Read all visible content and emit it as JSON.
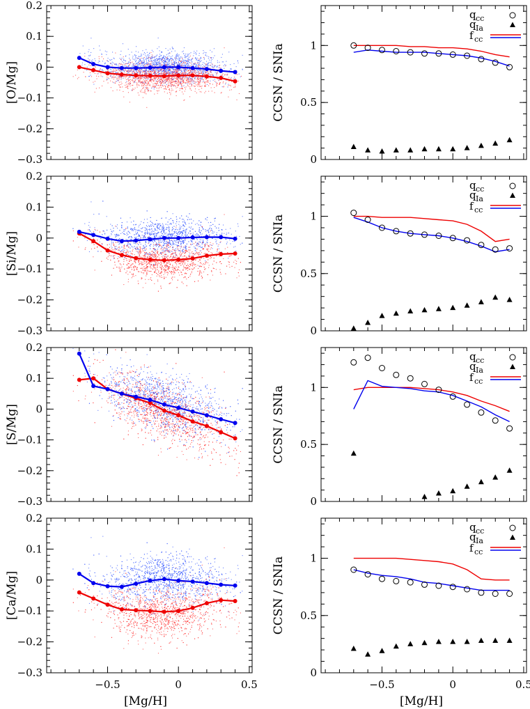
{
  "figure": {
    "x_label": "[Mg/H]",
    "y_label_right": "CCSN / SNIa"
  },
  "left_x_ticks": [
    "−0.5",
    "0",
    "0.5"
  ],
  "left_y_ticks": [
    "0.2",
    "0.1",
    "0",
    "−0.1",
    "−0.2",
    "−0.3"
  ],
  "right_x_ticks": [
    "−0.5",
    "0",
    "0.5"
  ],
  "right_y_ticks": [
    "1",
    "0.5",
    "0"
  ],
  "legend": {
    "q_cc": "q",
    "q_cc_sub": "cc",
    "q_Ia": "q",
    "q_Ia_sub": "Ia",
    "f_cc": "f",
    "f_cc_sub": "cc"
  },
  "colors": {
    "high": "#0000ee",
    "low": "#ee0000",
    "scatter_high": "#3355ff",
    "scatter_low": "#ff3333"
  },
  "chart_data": [
    {
      "type": "scatter",
      "element": "O",
      "ylabel": "[O/Mg]",
      "xlim": [
        -0.93,
        0.52
      ],
      "ylim": [
        -0.3,
        0.2
      ],
      "series": [
        {
          "color": "blue",
          "x": [
            -0.7,
            -0.6,
            -0.5,
            -0.4,
            -0.3,
            -0.2,
            -0.1,
            0.0,
            0.1,
            0.2,
            0.3,
            0.4
          ],
          "y": [
            0.03,
            0.01,
            0.0,
            -0.003,
            -0.003,
            -0.002,
            0.0,
            0.0,
            -0.003,
            -0.006,
            -0.012,
            -0.016
          ]
        },
        {
          "color": "red",
          "x": [
            -0.7,
            -0.6,
            -0.5,
            -0.4,
            -0.3,
            -0.2,
            -0.1,
            0.0,
            0.1,
            0.2,
            0.3,
            0.4
          ],
          "y": [
            0.0,
            -0.01,
            -0.02,
            -0.024,
            -0.027,
            -0.028,
            -0.029,
            -0.027,
            -0.027,
            -0.03,
            -0.035,
            -0.046
          ]
        }
      ],
      "cloud": {
        "center": -0.008,
        "width": 0.035,
        "spread_blue": 0.012,
        "spread_red": 0.012
      }
    },
    {
      "type": "line",
      "element": "O",
      "ylim": [
        0,
        1.35
      ],
      "xlim": [
        -0.93,
        0.52
      ],
      "x": [
        -0.7,
        -0.6,
        -0.5,
        -0.4,
        -0.3,
        -0.2,
        -0.1,
        0.0,
        0.1,
        0.2,
        0.3,
        0.4
      ],
      "q_cc": [
        1.0,
        0.98,
        0.96,
        0.95,
        0.94,
        0.93,
        0.93,
        0.92,
        0.91,
        0.88,
        0.85,
        0.81
      ],
      "q_Ia": [
        0.11,
        0.08,
        0.07,
        0.08,
        0.08,
        0.09,
        0.09,
        0.09,
        0.1,
        0.12,
        0.14,
        0.17
      ],
      "f_cc_red": [
        1.0,
        1.0,
        1.0,
        1.0,
        0.99,
        0.99,
        0.98,
        0.98,
        0.97,
        0.95,
        0.92,
        0.9
      ],
      "f_cc_blue": [
        0.94,
        0.96,
        0.95,
        0.94,
        0.94,
        0.94,
        0.93,
        0.92,
        0.91,
        0.89,
        0.86,
        0.82
      ]
    },
    {
      "type": "scatter",
      "element": "Si",
      "ylabel": "[Si/Mg]",
      "xlim": [
        -0.93,
        0.52
      ],
      "ylim": [
        -0.3,
        0.2
      ],
      "series": [
        {
          "color": "blue",
          "x": [
            -0.7,
            -0.6,
            -0.5,
            -0.4,
            -0.3,
            -0.2,
            -0.1,
            0.0,
            0.1,
            0.2,
            0.3,
            0.4
          ],
          "y": [
            0.02,
            0.01,
            -0.002,
            -0.01,
            -0.008,
            -0.004,
            0.0,
            0.0,
            0.002,
            0.003,
            0.003,
            -0.002
          ]
        },
        {
          "color": "red",
          "x": [
            -0.7,
            -0.6,
            -0.5,
            -0.4,
            -0.3,
            -0.2,
            -0.1,
            0.0,
            0.1,
            0.2,
            0.3,
            0.4
          ],
          "y": [
            0.015,
            -0.01,
            -0.04,
            -0.055,
            -0.065,
            -0.07,
            -0.072,
            -0.07,
            -0.066,
            -0.057,
            -0.052,
            -0.05
          ]
        }
      ],
      "cloud": {
        "center": -0.03,
        "width": 0.045,
        "spread_blue": 0.02,
        "spread_red": 0.02
      }
    },
    {
      "type": "line",
      "element": "Si",
      "ylim": [
        0,
        1.35
      ],
      "xlim": [
        -0.93,
        0.52
      ],
      "x": [
        -0.7,
        -0.6,
        -0.5,
        -0.4,
        -0.3,
        -0.2,
        -0.1,
        0.0,
        0.1,
        0.2,
        0.3,
        0.4
      ],
      "q_cc": [
        1.03,
        0.97,
        0.9,
        0.87,
        0.85,
        0.84,
        0.83,
        0.81,
        0.79,
        0.75,
        0.71,
        0.72
      ],
      "q_Ia": [
        0.02,
        0.07,
        0.13,
        0.15,
        0.17,
        0.18,
        0.19,
        0.2,
        0.22,
        0.25,
        0.29,
        0.27
      ],
      "f_cc_red": [
        1.0,
        1.0,
        0.99,
        0.99,
        0.99,
        0.98,
        0.97,
        0.96,
        0.93,
        0.87,
        0.78,
        0.8
      ],
      "f_cc_blue": [
        0.99,
        0.95,
        0.9,
        0.87,
        0.85,
        0.84,
        0.83,
        0.81,
        0.78,
        0.74,
        0.69,
        0.71
      ]
    },
    {
      "type": "scatter",
      "element": "S",
      "ylabel": "[S/Mg]",
      "xlim": [
        -0.93,
        0.52
      ],
      "ylim": [
        -0.3,
        0.2
      ],
      "series": [
        {
          "color": "blue",
          "x": [
            -0.7,
            -0.6,
            -0.5,
            -0.4,
            -0.3,
            -0.2,
            -0.1,
            0.0,
            0.1,
            0.2,
            0.3,
            0.4
          ],
          "y": [
            0.18,
            0.075,
            0.065,
            0.05,
            0.04,
            0.03,
            0.015,
            0.004,
            -0.008,
            -0.02,
            -0.033,
            -0.045
          ]
        },
        {
          "color": "red",
          "x": [
            -0.7,
            -0.6,
            -0.5,
            -0.4,
            -0.3,
            -0.2,
            -0.1,
            0.0,
            0.1,
            0.2,
            0.3,
            0.4
          ],
          "y": [
            0.095,
            0.1,
            0.065,
            0.05,
            0.035,
            0.02,
            -0.005,
            -0.02,
            -0.04,
            -0.055,
            -0.075,
            -0.095
          ]
        }
      ],
      "cloud": {
        "center": 0.0,
        "width": 0.07,
        "spread_blue": 0.03,
        "spread_red": 0.03
      }
    },
    {
      "type": "line",
      "element": "S",
      "ylim": [
        0,
        1.35
      ],
      "xlim": [
        -0.93,
        0.52
      ],
      "x": [
        -0.7,
        -0.6,
        -0.5,
        -0.4,
        -0.3,
        -0.2,
        -0.1,
        0.0,
        0.1,
        0.2,
        0.3,
        0.4
      ],
      "q_cc": [
        1.22,
        1.26,
        1.17,
        1.11,
        1.08,
        1.03,
        0.98,
        0.92,
        0.85,
        0.78,
        0.71,
        0.64
      ],
      "q_Ia": [
        0.42,
        null,
        null,
        null,
        null,
        0.04,
        0.07,
        0.09,
        0.13,
        0.17,
        0.21,
        0.27
      ],
      "f_cc_red": [
        0.98,
        1.0,
        1.0,
        1.0,
        1.0,
        0.99,
        0.98,
        0.96,
        0.93,
        0.88,
        0.84,
        0.79
      ],
      "f_cc_blue": [
        0.81,
        1.06,
        1.01,
        1.0,
        0.99,
        0.97,
        0.96,
        0.93,
        0.88,
        0.83,
        0.76,
        0.7
      ]
    },
    {
      "type": "scatter",
      "element": "Ca",
      "ylabel": "[Ca/Mg]",
      "xlim": [
        -0.93,
        0.52
      ],
      "ylim": [
        -0.3,
        0.2
      ],
      "series": [
        {
          "color": "blue",
          "x": [
            -0.7,
            -0.6,
            -0.5,
            -0.4,
            -0.3,
            -0.2,
            -0.1,
            0.0,
            0.1,
            0.2,
            0.3,
            0.4
          ],
          "y": [
            0.02,
            -0.01,
            -0.02,
            -0.022,
            -0.012,
            -0.002,
            0.003,
            -0.002,
            -0.005,
            -0.01,
            -0.015,
            -0.018
          ]
        },
        {
          "color": "red",
          "x": [
            -0.7,
            -0.6,
            -0.5,
            -0.4,
            -0.3,
            -0.2,
            -0.1,
            0.0,
            0.1,
            0.2,
            0.3,
            0.4
          ],
          "y": [
            -0.04,
            -0.06,
            -0.08,
            -0.095,
            -0.098,
            -0.1,
            -0.103,
            -0.1,
            -0.09,
            -0.075,
            -0.065,
            -0.068
          ]
        }
      ],
      "cloud": {
        "center": -0.045,
        "width": 0.06,
        "spread_blue": 0.03,
        "spread_red": 0.03
      }
    },
    {
      "type": "line",
      "element": "Ca",
      "ylim": [
        0,
        1.35
      ],
      "xlim": [
        -0.93,
        0.52
      ],
      "x": [
        -0.7,
        -0.6,
        -0.5,
        -0.4,
        -0.3,
        -0.2,
        -0.1,
        0.0,
        0.1,
        0.2,
        0.3,
        0.4
      ],
      "q_cc": [
        0.9,
        0.86,
        0.82,
        0.8,
        0.79,
        0.77,
        0.76,
        0.75,
        0.73,
        0.7,
        0.69,
        0.69
      ],
      "q_Ia": [
        0.21,
        0.16,
        0.19,
        0.23,
        0.25,
        0.26,
        0.27,
        0.27,
        0.27,
        0.28,
        0.28,
        0.28
      ],
      "f_cc_red": [
        1.0,
        1.0,
        1.0,
        1.0,
        0.99,
        0.98,
        0.97,
        0.95,
        0.9,
        0.82,
        0.81,
        0.81
      ],
      "f_cc_blue": [
        0.9,
        0.87,
        0.85,
        0.84,
        0.82,
        0.79,
        0.78,
        0.76,
        0.74,
        0.72,
        0.72,
        0.72
      ]
    }
  ]
}
